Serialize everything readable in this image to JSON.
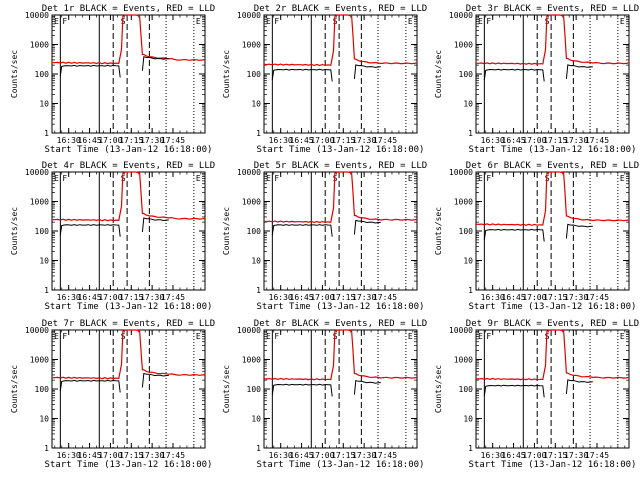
{
  "chart_data": [
    {
      "type": "line",
      "title": "Det 1r BLACK = Events, RED = LLD",
      "xlabel": "Start Time (13-Jan-12 16:18:00)",
      "ylabel": "Counts/sec",
      "yscale": "log",
      "ylim": [
        1,
        10000
      ],
      "x_ticklabels": [
        "16:30",
        "16:45",
        "17:00",
        "17:15",
        "17:30",
        "17:45"
      ],
      "y_ticklabels": [
        "1",
        "10",
        "100",
        "1000",
        "10000"
      ],
      "markers": [
        {
          "label": "E",
          "t": 0
        },
        {
          "label": "F",
          "t": 6
        },
        {
          "label": "S",
          "t": 48
        },
        {
          "label": "E",
          "t": 102
        }
      ],
      "series": [
        {
          "name": "Events",
          "color": "#000000",
          "base": 190,
          "pre_level": null,
          "post": 320
        },
        {
          "name": "LLD",
          "color": "#e00000",
          "base": 230,
          "post": 330,
          "tail": 300
        }
      ]
    },
    {
      "type": "line",
      "title": "Det 2r BLACK = Events, RED = LLD",
      "xlabel": "Start Time (13-Jan-12 16:18:00)",
      "ylabel": "Counts/sec",
      "yscale": "log",
      "ylim": [
        1,
        10000
      ],
      "x_ticklabels": [
        "16:30",
        "16:45",
        "17:00",
        "17:15",
        "17:30",
        "17:45"
      ],
      "y_ticklabels": [
        "1",
        "10",
        "100",
        "1000",
        "10000"
      ],
      "markers": [
        {
          "label": "E",
          "t": 0
        },
        {
          "label": "F",
          "t": 6
        },
        {
          "label": "S",
          "t": 48
        },
        {
          "label": "E",
          "t": 102
        }
      ],
      "series": [
        {
          "name": "Events",
          "color": "#000000",
          "base": 140,
          "post": 170
        },
        {
          "name": "LLD",
          "color": "#e00000",
          "base": 200,
          "post": 230,
          "tail": 230
        }
      ]
    },
    {
      "type": "line",
      "title": "Det 3r BLACK = Events, RED = LLD",
      "xlabel": "Start Time (13-Jan-12 16:18:00)",
      "ylabel": "Counts/sec",
      "yscale": "log",
      "ylim": [
        1,
        10000
      ],
      "x_ticklabels": [
        "16:30",
        "16:45",
        "17:00",
        "17:15",
        "17:30",
        "17:45"
      ],
      "y_ticklabels": [
        "1",
        "10",
        "100",
        "1000",
        "10000"
      ],
      "markers": [
        {
          "label": "E",
          "t": 0
        },
        {
          "label": "F",
          "t": 6
        },
        {
          "label": "S",
          "t": 48
        },
        {
          "label": "E",
          "t": 102
        }
      ],
      "series": [
        {
          "name": "Events",
          "color": "#000000",
          "base": 140,
          "post": 170
        },
        {
          "name": "LLD",
          "color": "#e00000",
          "base": 220,
          "post": 240,
          "tail": 230
        }
      ]
    },
    {
      "type": "line",
      "title": "Det 4r BLACK = Events, RED = LLD",
      "xlabel": "Start Time (13-Jan-12 16:18:00)",
      "ylabel": "Counts/sec",
      "yscale": "log",
      "ylim": [
        1,
        10000
      ],
      "x_ticklabels": [
        "16:30",
        "16:45",
        "17:00",
        "17:15",
        "17:30",
        "17:45"
      ],
      "y_ticklabels": [
        "1",
        "10",
        "100",
        "1000",
        "10000"
      ],
      "markers": [
        {
          "label": "E",
          "t": 0
        },
        {
          "label": "F",
          "t": 6
        },
        {
          "label": "S",
          "t": 48
        },
        {
          "label": "E",
          "t": 102
        }
      ],
      "series": [
        {
          "name": "Events",
          "color": "#000000",
          "base": 160,
          "post": 230
        },
        {
          "name": "LLD",
          "color": "#e00000",
          "base": 230,
          "post": 280,
          "tail": 260
        }
      ]
    },
    {
      "type": "line",
      "title": "Det 5r BLACK = Events, RED = LLD",
      "xlabel": "Start Time (13-Jan-12 16:18:00)",
      "ylabel": "Counts/sec",
      "yscale": "log",
      "ylim": [
        1,
        10000
      ],
      "x_ticklabels": [
        "16:30",
        "16:45",
        "17:00",
        "17:15",
        "17:30",
        "17:45"
      ],
      "y_ticklabels": [
        "1",
        "10",
        "100",
        "1000",
        "10000"
      ],
      "markers": [
        {
          "label": "E",
          "t": 0
        },
        {
          "label": "F",
          "t": 6
        },
        {
          "label": "S",
          "t": 48
        },
        {
          "label": "E",
          "t": 102
        }
      ],
      "series": [
        {
          "name": "Events",
          "color": "#000000",
          "base": 160,
          "post": 190
        },
        {
          "name": "LLD",
          "color": "#e00000",
          "base": 200,
          "post": 240,
          "tail": 240
        }
      ]
    },
    {
      "type": "line",
      "title": "Det 6r BLACK = Events, RED = LLD",
      "xlabel": "Start Time (13-Jan-12 16:18:00)",
      "ylabel": "Counts/sec",
      "yscale": "log",
      "ylim": [
        1,
        10000
      ],
      "x_ticklabels": [
        "16:30",
        "16:45",
        "17:00",
        "17:15",
        "17:30",
        "17:45"
      ],
      "y_ticklabels": [
        "1",
        "10",
        "100",
        "1000",
        "10000"
      ],
      "markers": [
        {
          "label": "E",
          "t": 0
        },
        {
          "label": "F",
          "t": 6
        },
        {
          "label": "S",
          "t": 48
        },
        {
          "label": "E",
          "t": 102
        }
      ],
      "series": [
        {
          "name": "Events",
          "color": "#000000",
          "base": 110,
          "post": 140
        },
        {
          "name": "LLD",
          "color": "#e00000",
          "base": 160,
          "post": 230,
          "tail": 230
        }
      ]
    },
    {
      "type": "line",
      "title": "Det 7r BLACK = Events, RED = LLD",
      "xlabel": "Start Time (13-Jan-12 16:18:00)",
      "ylabel": "Counts/sec",
      "yscale": "log",
      "ylim": [
        1,
        10000
      ],
      "x_ticklabels": [
        "16:30",
        "16:45",
        "17:00",
        "17:15",
        "17:30",
        "17:45"
      ],
      "y_ticklabels": [
        "1",
        "10",
        "100",
        "1000",
        "10000"
      ],
      "markers": [
        {
          "label": "E",
          "t": 0
        },
        {
          "label": "F",
          "t": 6
        },
        {
          "label": "S",
          "t": 48
        },
        {
          "label": "E",
          "t": 102
        }
      ],
      "series": [
        {
          "name": "Events",
          "color": "#000000",
          "base": 190,
          "post": 280
        },
        {
          "name": "LLD",
          "color": "#e00000",
          "base": 230,
          "post": 320,
          "tail": 300
        }
      ]
    },
    {
      "type": "line",
      "title": "Det 8r BLACK = Events, RED = LLD",
      "xlabel": "Start Time (13-Jan-12 16:18:00)",
      "ylabel": "Counts/sec",
      "yscale": "log",
      "ylim": [
        1,
        10000
      ],
      "x_ticklabels": [
        "16:30",
        "16:45",
        "17:00",
        "17:15",
        "17:30",
        "17:45"
      ],
      "y_ticklabels": [
        "1",
        "10",
        "100",
        "1000",
        "10000"
      ],
      "markers": [
        {
          "label": "E",
          "t": 0
        },
        {
          "label": "F",
          "t": 6
        },
        {
          "label": "S",
          "t": 48
        },
        {
          "label": "E",
          "t": 102
        }
      ],
      "series": [
        {
          "name": "Events",
          "color": "#000000",
          "base": 140,
          "post": 160
        },
        {
          "name": "LLD",
          "color": "#e00000",
          "base": 210,
          "post": 240,
          "tail": 240
        }
      ]
    },
    {
      "type": "line",
      "title": "Det 9r BLACK = Events, RED = LLD",
      "xlabel": "Start Time (13-Jan-12 16:18:00)",
      "ylabel": "Counts/sec",
      "yscale": "log",
      "ylim": [
        1,
        10000
      ],
      "x_ticklabels": [
        "16:30",
        "16:45",
        "17:00",
        "17:15",
        "17:30",
        "17:45"
      ],
      "y_ticklabels": [
        "1",
        "10",
        "100",
        "1000",
        "10000"
      ],
      "markers": [
        {
          "label": "E",
          "t": 0
        },
        {
          "label": "F",
          "t": 6
        },
        {
          "label": "S",
          "t": 48
        },
        {
          "label": "E",
          "t": 102
        }
      ],
      "series": [
        {
          "name": "Events",
          "color": "#000000",
          "base": 130,
          "post": 170
        },
        {
          "name": "LLD",
          "color": "#e00000",
          "base": 210,
          "post": 250,
          "tail": 240
        }
      ]
    }
  ]
}
